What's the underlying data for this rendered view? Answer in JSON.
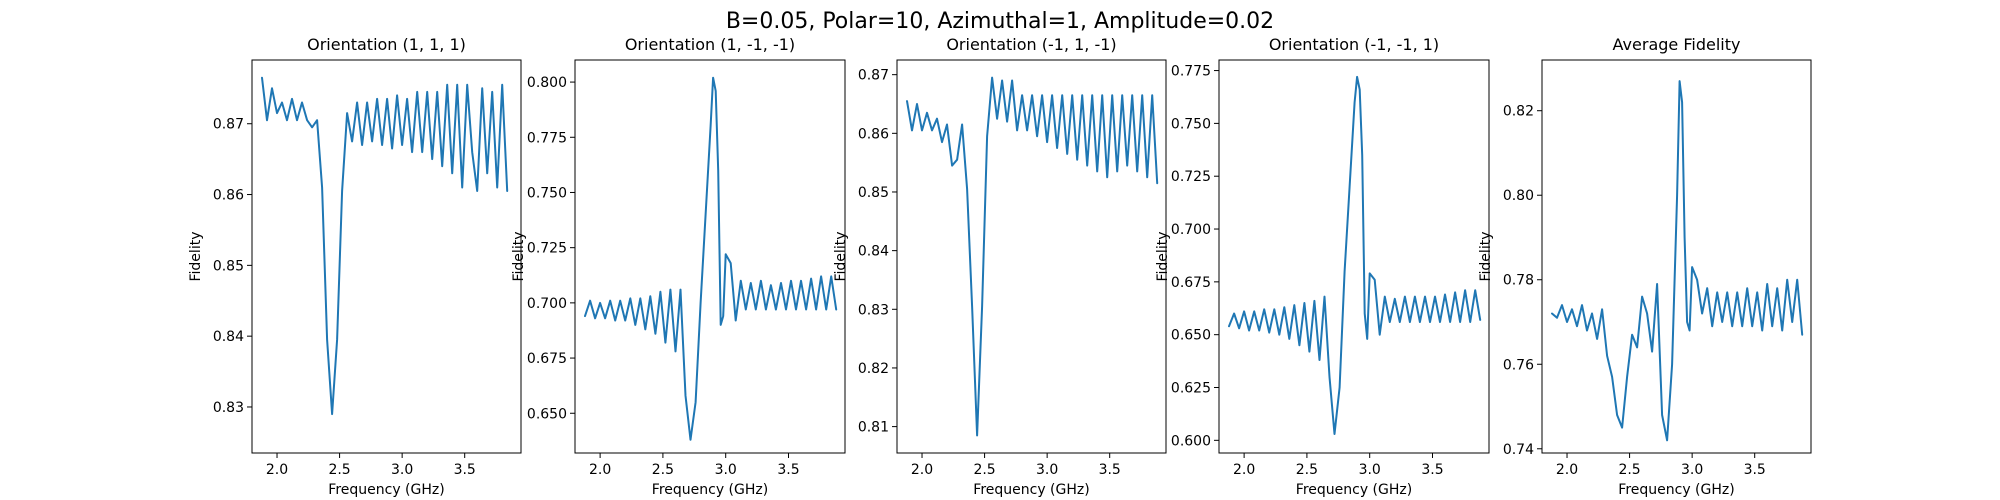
{
  "figure": {
    "title": "B=0.05, Polar=10, Azimuthal=1, Amplitude=0.02"
  },
  "colors": {
    "series": "#1f77b4",
    "axes": "#000000",
    "background": "#ffffff"
  },
  "chart_data": [
    {
      "type": "line",
      "title": "Orientation (1, 1, 1)",
      "xlabel": "Frequency (GHz)",
      "ylabel": "Fidelity",
      "xlim": [
        1.8,
        3.95
      ],
      "ylim": [
        0.8235,
        0.879
      ],
      "grid": false,
      "xticks": [
        2.0,
        2.5,
        3.0,
        3.5
      ],
      "xtick_labels": [
        "2.0",
        "2.5",
        "3.0",
        "3.5"
      ],
      "yticks": [
        0.83,
        0.84,
        0.85,
        0.86,
        0.87
      ],
      "ytick_labels": [
        "0.83",
        "0.84",
        "0.85",
        "0.86",
        "0.87"
      ],
      "x": [
        1.88,
        1.92,
        1.96,
        2.0,
        2.04,
        2.08,
        2.12,
        2.16,
        2.2,
        2.24,
        2.28,
        2.32,
        2.36,
        2.4,
        2.44,
        2.48,
        2.52,
        2.56,
        2.6,
        2.64,
        2.68,
        2.72,
        2.76,
        2.8,
        2.84,
        2.88,
        2.92,
        2.96,
        3.0,
        3.04,
        3.08,
        3.12,
        3.16,
        3.2,
        3.24,
        3.28,
        3.32,
        3.36,
        3.4,
        3.44,
        3.48,
        3.52,
        3.56,
        3.6,
        3.64,
        3.68,
        3.72,
        3.76,
        3.8,
        3.84
      ],
      "y": [
        0.8765,
        0.8705,
        0.875,
        0.8715,
        0.873,
        0.8705,
        0.8735,
        0.8705,
        0.873,
        0.8705,
        0.8695,
        0.8705,
        0.861,
        0.8395,
        0.829,
        0.8395,
        0.8605,
        0.8715,
        0.8675,
        0.873,
        0.867,
        0.873,
        0.8675,
        0.8735,
        0.867,
        0.8735,
        0.8665,
        0.874,
        0.867,
        0.8735,
        0.866,
        0.8745,
        0.866,
        0.8745,
        0.865,
        0.8745,
        0.864,
        0.8755,
        0.863,
        0.8755,
        0.861,
        0.8755,
        0.866,
        0.8605,
        0.875,
        0.863,
        0.8745,
        0.861,
        0.8755,
        0.8605
      ]
    },
    {
      "type": "line",
      "title": "Orientation (1, -1, -1)",
      "xlabel": "Frequency (GHz)",
      "ylabel": "Fidelity",
      "xlim": [
        1.8,
        3.95
      ],
      "ylim": [
        0.632,
        0.81
      ],
      "grid": false,
      "xticks": [
        2.0,
        2.5,
        3.0,
        3.5
      ],
      "xtick_labels": [
        "2.0",
        "2.5",
        "3.0",
        "3.5"
      ],
      "yticks": [
        0.65,
        0.675,
        0.7,
        0.725,
        0.75,
        0.775,
        0.8
      ],
      "ytick_labels": [
        "0.650",
        "0.675",
        "0.700",
        "0.725",
        "0.750",
        "0.775",
        "0.800"
      ],
      "x": [
        1.88,
        1.92,
        1.96,
        2.0,
        2.04,
        2.08,
        2.12,
        2.16,
        2.2,
        2.24,
        2.28,
        2.32,
        2.36,
        2.4,
        2.44,
        2.48,
        2.52,
        2.56,
        2.6,
        2.64,
        2.68,
        2.72,
        2.76,
        2.8,
        2.84,
        2.88,
        2.9,
        2.92,
        2.94,
        2.96,
        2.98,
        3.0,
        3.04,
        3.08,
        3.12,
        3.16,
        3.2,
        3.24,
        3.28,
        3.32,
        3.36,
        3.4,
        3.44,
        3.48,
        3.52,
        3.56,
        3.6,
        3.64,
        3.68,
        3.72,
        3.76,
        3.8,
        3.84,
        3.88
      ],
      "y": [
        0.694,
        0.701,
        0.693,
        0.7,
        0.693,
        0.701,
        0.692,
        0.701,
        0.692,
        0.702,
        0.69,
        0.702,
        0.688,
        0.703,
        0.686,
        0.705,
        0.682,
        0.706,
        0.678,
        0.706,
        0.658,
        0.638,
        0.655,
        0.7,
        0.74,
        0.78,
        0.802,
        0.796,
        0.76,
        0.69,
        0.694,
        0.722,
        0.718,
        0.692,
        0.71,
        0.697,
        0.709,
        0.697,
        0.71,
        0.697,
        0.708,
        0.697,
        0.709,
        0.697,
        0.71,
        0.697,
        0.71,
        0.697,
        0.711,
        0.697,
        0.712,
        0.697,
        0.712,
        0.697
      ]
    },
    {
      "type": "line",
      "title": "Orientation (-1, 1, -1)",
      "xlabel": "Frequency (GHz)",
      "ylabel": "Fidelity",
      "xlim": [
        1.8,
        3.95
      ],
      "ylim": [
        0.8055,
        0.8725
      ],
      "grid": false,
      "xticks": [
        2.0,
        2.5,
        3.0,
        3.5
      ],
      "xtick_labels": [
        "2.0",
        "2.5",
        "3.0",
        "3.5"
      ],
      "yticks": [
        0.81,
        0.82,
        0.83,
        0.84,
        0.85,
        0.86,
        0.87
      ],
      "ytick_labels": [
        "0.81",
        "0.82",
        "0.83",
        "0.84",
        "0.85",
        "0.86",
        "0.87"
      ],
      "x": [
        1.88,
        1.92,
        1.96,
        2.0,
        2.04,
        2.08,
        2.12,
        2.16,
        2.2,
        2.24,
        2.28,
        2.32,
        2.36,
        2.4,
        2.44,
        2.48,
        2.52,
        2.56,
        2.6,
        2.64,
        2.68,
        2.72,
        2.76,
        2.8,
        2.84,
        2.88,
        2.92,
        2.96,
        3.0,
        3.04,
        3.08,
        3.12,
        3.16,
        3.2,
        3.24,
        3.28,
        3.32,
        3.36,
        3.4,
        3.44,
        3.48,
        3.52,
        3.56,
        3.6,
        3.64,
        3.68,
        3.72,
        3.76,
        3.8,
        3.84,
        3.88
      ],
      "y": [
        0.8655,
        0.8605,
        0.865,
        0.8605,
        0.8635,
        0.8605,
        0.8625,
        0.8585,
        0.8615,
        0.8545,
        0.8555,
        0.8615,
        0.8505,
        0.8305,
        0.8085,
        0.8305,
        0.8595,
        0.8695,
        0.8625,
        0.869,
        0.862,
        0.869,
        0.8605,
        0.8665,
        0.8605,
        0.8665,
        0.8595,
        0.8665,
        0.8585,
        0.8665,
        0.8575,
        0.8665,
        0.8565,
        0.8665,
        0.8555,
        0.8665,
        0.8545,
        0.8665,
        0.8535,
        0.8665,
        0.8525,
        0.8665,
        0.8535,
        0.8665,
        0.8545,
        0.8665,
        0.8535,
        0.8665,
        0.8525,
        0.8665,
        0.8515
      ]
    },
    {
      "type": "line",
      "title": "Orientation (-1, -1, 1)",
      "xlabel": "Frequency (GHz)",
      "ylabel": "Fidelity",
      "xlim": [
        1.8,
        3.95
      ],
      "ylim": [
        0.594,
        0.78
      ],
      "grid": false,
      "xticks": [
        2.0,
        2.5,
        3.0,
        3.5
      ],
      "xtick_labels": [
        "2.0",
        "2.5",
        "3.0",
        "3.5"
      ],
      "yticks": [
        0.6,
        0.625,
        0.65,
        0.675,
        0.7,
        0.725,
        0.75,
        0.775
      ],
      "ytick_labels": [
        "0.600",
        "0.625",
        "0.650",
        "0.675",
        "0.700",
        "0.725",
        "0.750",
        "0.775"
      ],
      "x": [
        1.88,
        1.92,
        1.96,
        2.0,
        2.04,
        2.08,
        2.12,
        2.16,
        2.2,
        2.24,
        2.28,
        2.32,
        2.36,
        2.4,
        2.44,
        2.48,
        2.52,
        2.56,
        2.6,
        2.64,
        2.68,
        2.72,
        2.76,
        2.8,
        2.84,
        2.88,
        2.9,
        2.92,
        2.94,
        2.96,
        2.98,
        3.0,
        3.04,
        3.08,
        3.12,
        3.16,
        3.2,
        3.24,
        3.28,
        3.32,
        3.36,
        3.4,
        3.44,
        3.48,
        3.52,
        3.56,
        3.6,
        3.64,
        3.68,
        3.72,
        3.76,
        3.8,
        3.84,
        3.88
      ],
      "y": [
        0.654,
        0.66,
        0.653,
        0.661,
        0.652,
        0.661,
        0.652,
        0.662,
        0.651,
        0.662,
        0.65,
        0.663,
        0.648,
        0.664,
        0.645,
        0.665,
        0.642,
        0.666,
        0.638,
        0.668,
        0.63,
        0.603,
        0.625,
        0.68,
        0.72,
        0.76,
        0.772,
        0.766,
        0.735,
        0.66,
        0.648,
        0.679,
        0.676,
        0.65,
        0.668,
        0.656,
        0.667,
        0.656,
        0.668,
        0.656,
        0.668,
        0.656,
        0.668,
        0.656,
        0.668,
        0.656,
        0.669,
        0.656,
        0.67,
        0.656,
        0.671,
        0.656,
        0.671,
        0.657
      ]
    },
    {
      "type": "line",
      "title": "Average Fidelity",
      "xlabel": "Frequency (GHz)",
      "ylabel": "Fidelity",
      "xlim": [
        1.8,
        3.95
      ],
      "ylim": [
        0.739,
        0.832
      ],
      "grid": false,
      "xticks": [
        2.0,
        2.5,
        3.0,
        3.5
      ],
      "xtick_labels": [
        "2.0",
        "2.5",
        "3.0",
        "3.5"
      ],
      "yticks": [
        0.74,
        0.76,
        0.78,
        0.8,
        0.82
      ],
      "ytick_labels": [
        "0.74",
        "0.76",
        "0.78",
        "0.80",
        "0.82"
      ],
      "x": [
        1.88,
        1.92,
        1.96,
        2.0,
        2.04,
        2.08,
        2.12,
        2.16,
        2.2,
        2.24,
        2.28,
        2.32,
        2.36,
        2.4,
        2.44,
        2.48,
        2.52,
        2.56,
        2.6,
        2.64,
        2.68,
        2.72,
        2.76,
        2.8,
        2.84,
        2.88,
        2.9,
        2.92,
        2.94,
        2.96,
        2.98,
        3.0,
        3.04,
        3.08,
        3.12,
        3.16,
        3.2,
        3.24,
        3.28,
        3.32,
        3.36,
        3.4,
        3.44,
        3.48,
        3.52,
        3.56,
        3.6,
        3.64,
        3.68,
        3.72,
        3.76,
        3.8,
        3.84,
        3.88
      ],
      "y": [
        0.772,
        0.771,
        0.774,
        0.77,
        0.773,
        0.769,
        0.774,
        0.768,
        0.772,
        0.766,
        0.773,
        0.762,
        0.757,
        0.748,
        0.745,
        0.757,
        0.767,
        0.764,
        0.776,
        0.772,
        0.763,
        0.779,
        0.748,
        0.742,
        0.76,
        0.8,
        0.827,
        0.822,
        0.79,
        0.77,
        0.768,
        0.783,
        0.78,
        0.772,
        0.778,
        0.769,
        0.777,
        0.77,
        0.777,
        0.769,
        0.777,
        0.769,
        0.778,
        0.769,
        0.777,
        0.768,
        0.779,
        0.769,
        0.778,
        0.768,
        0.78,
        0.77,
        0.78,
        0.767
      ]
    }
  ]
}
